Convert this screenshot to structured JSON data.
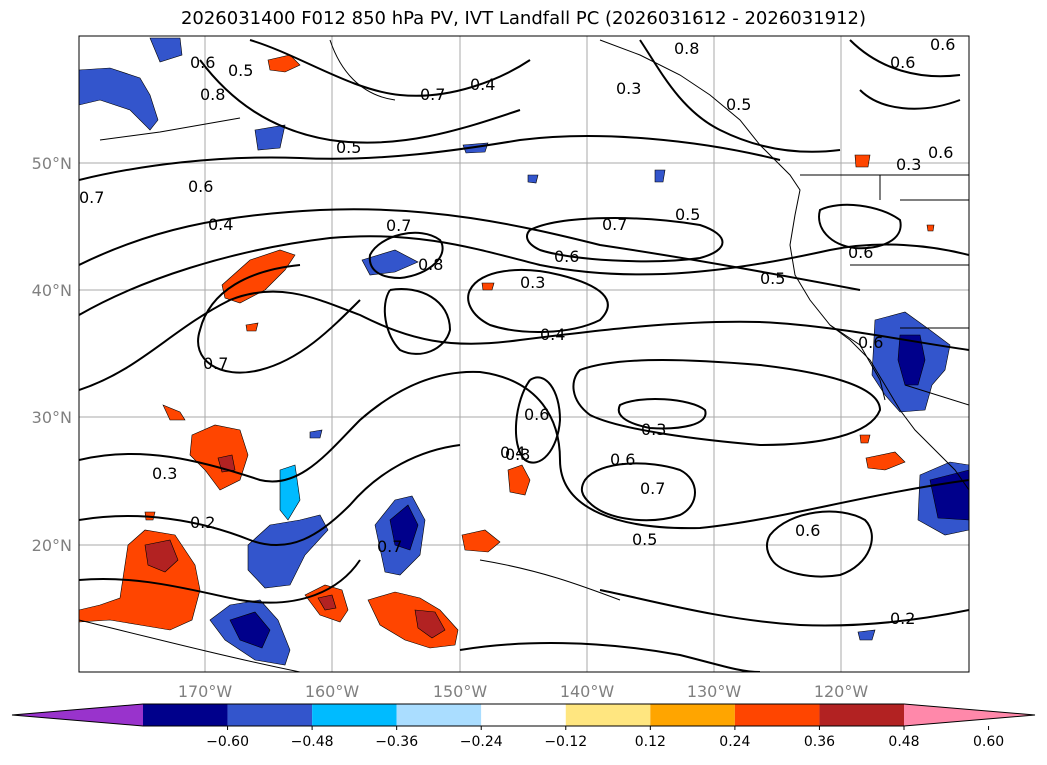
{
  "title": "2026031400 F012 850 hPa PV, IVT Landfall PC (2026031612 - 2026031912)",
  "lat_ticks": [
    "50°N",
    "40°N",
    "30°N",
    "20°N"
  ],
  "lon_ticks": [
    "170°W",
    "160°W",
    "150°W",
    "140°W",
    "130°W",
    "120°W"
  ],
  "colorbar": {
    "colors": [
      "#9933cc",
      "#00008b",
      "#3355cc",
      "#00bbff",
      "#aaddff",
      "#ffffff",
      "#ffe680",
      "#ffa500",
      "#ff4500",
      "#b22222",
      "#ff88aa"
    ],
    "ticks": [
      "−0.60",
      "−0.48",
      "−0.36",
      "−0.24",
      "−0.12",
      "0.12",
      "0.24",
      "0.36",
      "0.48",
      "0.60"
    ]
  },
  "contour_labels": [
    "0.8",
    "0.6",
    "0.5",
    "0.8",
    "0.5",
    "0.7",
    "0.4",
    "0.3",
    "0.5",
    "0.7",
    "0.6",
    "0.7",
    "0.6",
    "0.5",
    "0.7",
    "0.4",
    "0.6",
    "0.7",
    "0.8",
    "0.5",
    "0.6",
    "0.3",
    "0.6",
    "0.3",
    "0.4",
    "0.6",
    "0.7",
    "0.6",
    "0.4",
    "0.3",
    "0.6",
    "0.7",
    "0.5",
    "0.2",
    "0.3",
    "0.2",
    "0.6",
    "0.6",
    "0.3"
  ]
}
